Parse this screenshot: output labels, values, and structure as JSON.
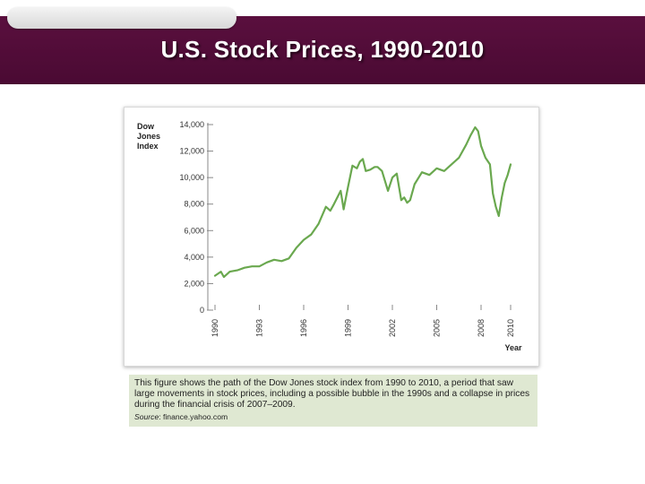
{
  "header": {
    "title": "U.S. Stock Prices, 1990-2010"
  },
  "chart_data": {
    "type": "line",
    "title": "",
    "ylabel": "Dow Jones Index",
    "xlabel": "Year",
    "ylim": [
      0,
      14000
    ],
    "xlim": [
      1990,
      2010
    ],
    "y_ticks": [
      0,
      2000,
      4000,
      6000,
      8000,
      10000,
      12000,
      14000
    ],
    "y_tick_labels": [
      "0",
      "2,000",
      "4,000",
      "6,000",
      "8,000",
      "10,000",
      "12,000",
      "14,000"
    ],
    "x_ticks": [
      1990,
      1993,
      1996,
      1999,
      2002,
      2005,
      2008,
      2010
    ],
    "x_tick_labels": [
      "1990",
      "1993",
      "1996",
      "1999",
      "2002",
      "2005",
      "2008",
      "2010"
    ],
    "line_color": "#6aa84f",
    "series": [
      {
        "name": "Dow Jones Index",
        "x": [
          1990.0,
          1990.4,
          1990.6,
          1990.8,
          1991.0,
          1991.5,
          1992.0,
          1992.5,
          1993.0,
          1993.5,
          1994.0,
          1994.5,
          1995.0,
          1995.5,
          1996.0,
          1996.5,
          1997.0,
          1997.5,
          1997.8,
          1998.0,
          1998.5,
          1998.7,
          1999.0,
          1999.3,
          1999.6,
          1999.8,
          2000.0,
          2000.2,
          2000.5,
          2000.8,
          2001.0,
          2001.3,
          2001.7,
          2002.0,
          2002.3,
          2002.6,
          2002.8,
          2003.0,
          2003.2,
          2003.5,
          2004.0,
          2004.5,
          2005.0,
          2005.5,
          2006.0,
          2006.5,
          2007.0,
          2007.3,
          2007.6,
          2007.8,
          2008.0,
          2008.3,
          2008.6,
          2008.8,
          2009.0,
          2009.2,
          2009.4,
          2009.6,
          2009.8,
          2010.0
        ],
        "values": [
          2600,
          2900,
          2500,
          2700,
          2900,
          3000,
          3200,
          3300,
          3300,
          3600,
          3800,
          3700,
          3900,
          4700,
          5300,
          5700,
          6500,
          7800,
          7500,
          7900,
          9000,
          7600,
          9300,
          10900,
          10700,
          11200,
          11400,
          10500,
          10600,
          10800,
          10800,
          10500,
          9000,
          10000,
          10300,
          8300,
          8500,
          8100,
          8300,
          9500,
          10400,
          10200,
          10700,
          10500,
          11000,
          11500,
          12500,
          13200,
          13800,
          13500,
          12400,
          11500,
          11000,
          8800,
          7800,
          7100,
          8500,
          9600,
          10200,
          11000
        ]
      }
    ]
  },
  "caption": {
    "text": "This figure shows the path of the Dow Jones stock index from 1990 to 2010, a period that saw large movements in stock prices, including a possible bubble in the 1990s and a collapse in prices during the financial crisis of 2007–2009.",
    "source_label": "Source",
    "source_text": ": finance.yahoo.com"
  }
}
